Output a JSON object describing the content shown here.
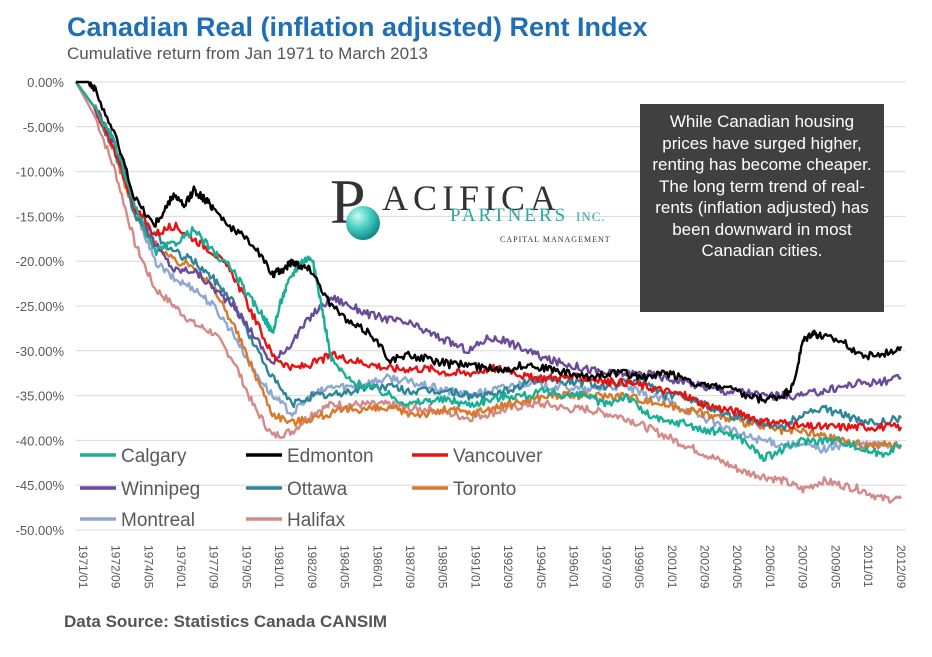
{
  "title": "Canadian Real (inflation adjusted) Rent Index",
  "subtitle": "Cumulative return from Jan 1971 to March 2013",
  "source": "Data Source: Statistics Canada CANSIM",
  "annotation": "While Canadian housing prices have surged higher, renting has become cheaper.  The long term trend of real-rents (inflation adjusted) has  been downward in most Canadian cities.",
  "logo": {
    "letter": "P",
    "name": "ACIFICA",
    "sub": "PARTNERS",
    "inc": "INC.",
    "tagline": "CAPITAL MANAGEMENT"
  },
  "colors": {
    "Calgary": "#1aaf94",
    "Edmonton": "#000000",
    "Vancouver": "#e81212",
    "Winnipeg": "#6a4a9a",
    "Ottawa": "#2e8599",
    "Toronto": "#d9782b",
    "Montreal": "#8fa8d2",
    "Halifax": "#d48a88",
    "grid": "#d9d9d9",
    "title": "#1f6fb5"
  },
  "chart_data": {
    "type": "line",
    "title": "Canadian Real (inflation adjusted) Rent Index",
    "xlabel": "",
    "ylabel": "",
    "x_unit": "year",
    "xlim": [
      1971.0,
      2013.25
    ],
    "ylim": [
      -50,
      0
    ],
    "y_ticks": [
      0,
      -5,
      -10,
      -15,
      -20,
      -25,
      -30,
      -35,
      -40,
      -45,
      -50
    ],
    "y_tick_labels": [
      "0.00%",
      "-5.00%",
      "-10.00%",
      "-15.00%",
      "-20.00%",
      "-25.00%",
      "-30.00%",
      "-35.00%",
      "-40.00%",
      "-45.00%",
      "-50.00%"
    ],
    "x_tick_labels": [
      "1971/01",
      "1972/09",
      "1974/05",
      "1976/01",
      "1977/09",
      "1979/05",
      "1981/01",
      "1982/09",
      "1984/05",
      "1986/01",
      "1987/09",
      "1989/05",
      "1991/01",
      "1992/09",
      "1994/05",
      "1996/01",
      "1997/09",
      "1999/05",
      "2001/01",
      "2002/09",
      "2004/05",
      "2006/01",
      "2007/09",
      "2009/05",
      "2011/01",
      "2012/09"
    ],
    "grid": true,
    "series": [
      {
        "name": "Calgary",
        "x": [
          1971,
          1972,
          1973,
          1974,
          1975,
          1976,
          1977,
          1978,
          1979,
          1979.8,
          1980.5,
          1981,
          1981.5,
          1982,
          1982.5,
          1983,
          1983.5,
          1984,
          1985,
          1986,
          1987,
          1988,
          1989,
          1990,
          1991,
          1992,
          1993,
          1994,
          1995,
          1996,
          1997,
          1998,
          1999,
          2000,
          2001,
          2002,
          2003,
          2004,
          2005,
          2006,
          2007,
          2008,
          2009,
          2010,
          2011,
          2012,
          2013
        ],
        "y": [
          0,
          -3,
          -7,
          -14,
          -19,
          -18,
          -16.5,
          -19,
          -21,
          -24,
          -26,
          -28,
          -24,
          -21.5,
          -20,
          -19.5,
          -25,
          -31,
          -33.5,
          -34,
          -35,
          -36,
          -35.5,
          -35.5,
          -36,
          -35.5,
          -35,
          -35,
          -34.5,
          -35,
          -35,
          -36,
          -35,
          -37,
          -38,
          -38,
          -39,
          -39,
          -40,
          -42,
          -41,
          -40,
          -40,
          -40,
          -41,
          -41.5,
          -40.5
        ]
      },
      {
        "name": "Edmonton",
        "x": [
          1971,
          1971.7,
          1972,
          1973,
          1974,
          1975,
          1975.6,
          1976,
          1976.5,
          1977,
          1977.5,
          1978,
          1979,
          1980,
          1981,
          1981.5,
          1982,
          1982.5,
          1983,
          1984,
          1985,
          1986,
          1987,
          1988,
          1989,
          1990,
          1991,
          1992,
          1993,
          1994,
          1995,
          1996,
          1997,
          1998,
          1999,
          2000,
          2001,
          2002,
          2003,
          2004,
          2005,
          2006,
          2007,
          2007.5,
          2008,
          2008.5,
          2009,
          2010,
          2011,
          2012,
          2013
        ],
        "y": [
          0,
          0,
          -1,
          -6,
          -13,
          -16,
          -14,
          -12.5,
          -14,
          -12,
          -13,
          -14,
          -16.5,
          -18,
          -21.5,
          -21,
          -20,
          -20.5,
          -21,
          -25,
          -27,
          -28,
          -31,
          -30.5,
          -31,
          -31.5,
          -31.5,
          -32,
          -32,
          -31.5,
          -32,
          -32.5,
          -33,
          -32.5,
          -32.5,
          -33,
          -32.5,
          -33,
          -34,
          -34,
          -35,
          -35.5,
          -35,
          -34,
          -29,
          -28,
          -28.5,
          -29,
          -30.5,
          -30.5,
          -29.5
        ]
      },
      {
        "name": "Vancouver",
        "x": [
          1971,
          1972,
          1973,
          1974,
          1975,
          1976,
          1977,
          1978,
          1979,
          1980,
          1981,
          1982,
          1983,
          1984,
          1985,
          1986,
          1987,
          1988,
          1989,
          1990,
          1991,
          1992,
          1993,
          1994,
          1995,
          1996,
          1997,
          1998,
          1999,
          2000,
          2001,
          2002,
          2003,
          2004,
          2005,
          2006,
          2007,
          2008,
          2009,
          2010,
          2011,
          2012,
          2013
        ],
        "y": [
          0,
          -3,
          -8,
          -14,
          -17,
          -16,
          -17.5,
          -19,
          -21.5,
          -26,
          -30.5,
          -32,
          -31.5,
          -30.5,
          -31,
          -31.5,
          -32,
          -32,
          -32,
          -32.5,
          -32.5,
          -32,
          -32,
          -33,
          -33,
          -33,
          -33,
          -33.5,
          -33.5,
          -34,
          -34.5,
          -35,
          -36,
          -36.5,
          -37,
          -38,
          -38,
          -38.5,
          -38.5,
          -38.5,
          -38.5,
          -38.5,
          -38.5
        ]
      },
      {
        "name": "Winnipeg",
        "x": [
          1971,
          1972,
          1973,
          1974,
          1975,
          1976,
          1977,
          1978,
          1979,
          1980,
          1981,
          1982,
          1983,
          1984,
          1985,
          1986,
          1987,
          1988,
          1989,
          1990,
          1991,
          1992,
          1993,
          1994,
          1995,
          1996,
          1997,
          1998,
          1999,
          2000,
          2001,
          2002,
          2003,
          2004,
          2005,
          2006,
          2007,
          2008,
          2009,
          2010,
          2011,
          2012,
          2013
        ],
        "y": [
          0,
          -3,
          -7,
          -14,
          -18,
          -21,
          -21,
          -23,
          -25,
          -28,
          -31.5,
          -29,
          -26,
          -24,
          -25,
          -26,
          -26.5,
          -27,
          -28,
          -29,
          -30,
          -28.5,
          -29,
          -30,
          -31,
          -31.5,
          -32,
          -32.5,
          -32.5,
          -32.5,
          -33,
          -33.5,
          -34,
          -34.5,
          -34.5,
          -35,
          -35,
          -35,
          -34.5,
          -34,
          -33.5,
          -33.5,
          -33
        ]
      },
      {
        "name": "Ottawa",
        "x": [
          1971,
          1972,
          1973,
          1974,
          1975,
          1976,
          1977,
          1978,
          1979,
          1980,
          1981,
          1982,
          1983,
          1984,
          1985,
          1986,
          1987,
          1988,
          1989,
          1990,
          1991,
          1992,
          1993,
          1994,
          1995,
          1996,
          1997,
          1998,
          1999,
          2000,
          2001,
          2002,
          2003,
          2004,
          2005,
          2006,
          2007,
          2008,
          2009,
          2010,
          2011,
          2012,
          2013
        ],
        "y": [
          0,
          -3,
          -8,
          -15,
          -17,
          -19,
          -20,
          -22,
          -24.5,
          -29,
          -33,
          -36,
          -35,
          -35,
          -34.5,
          -34,
          -34,
          -34.5,
          -34.5,
          -34.5,
          -35,
          -35,
          -34.5,
          -33.5,
          -33,
          -33.5,
          -33.5,
          -34,
          -33.5,
          -33.5,
          -35,
          -35,
          -36,
          -37,
          -37.5,
          -38,
          -38.5,
          -37,
          -36.5,
          -37,
          -38,
          -38,
          -37.5
        ]
      },
      {
        "name": "Toronto",
        "x": [
          1971,
          1972,
          1973,
          1974,
          1975,
          1976,
          1977,
          1978,
          1979,
          1980,
          1981,
          1982,
          1983,
          1984,
          1985,
          1986,
          1987,
          1988,
          1989,
          1990,
          1991,
          1992,
          1993,
          1994,
          1995,
          1996,
          1997,
          1998,
          1999,
          2000,
          2001,
          2002,
          2003,
          2004,
          2005,
          2006,
          2007,
          2008,
          2009,
          2010,
          2011,
          2012,
          2013
        ],
        "y": [
          0,
          -3,
          -8,
          -15,
          -18,
          -20,
          -20.5,
          -23,
          -27,
          -32,
          -37,
          -38,
          -37.5,
          -37,
          -36.5,
          -36.5,
          -36.5,
          -37,
          -37,
          -36.5,
          -37,
          -36.5,
          -36,
          -35.5,
          -35,
          -35,
          -35,
          -35,
          -35,
          -35.5,
          -36,
          -36.5,
          -37,
          -37.5,
          -38,
          -38.5,
          -39,
          -39,
          -39.5,
          -40,
          -40.5,
          -40.5,
          -40.5
        ]
      },
      {
        "name": "Montreal",
        "x": [
          1971,
          1972,
          1973,
          1974,
          1975,
          1976,
          1977,
          1978,
          1979,
          1980,
          1981,
          1982,
          1983,
          1984,
          1985,
          1986,
          1987,
          1988,
          1989,
          1990,
          1991,
          1992,
          1993,
          1994,
          1995,
          1996,
          1997,
          1998,
          1999,
          2000,
          2001,
          2002,
          2003,
          2004,
          2005,
          2006,
          2007,
          2008,
          2009,
          2010,
          2011,
          2012,
          2013
        ],
        "y": [
          0,
          -3,
          -8,
          -14,
          -20,
          -22,
          -23,
          -25,
          -28,
          -32,
          -35,
          -37,
          -35,
          -34,
          -34,
          -33.5,
          -33,
          -33.5,
          -34,
          -34.5,
          -35,
          -34.5,
          -34,
          -33.5,
          -34,
          -34,
          -34.5,
          -34,
          -34,
          -35,
          -35.5,
          -36.5,
          -37.5,
          -38.5,
          -39.5,
          -40,
          -40.5,
          -40.5,
          -41,
          -40.5,
          -40.5,
          -40.5,
          -40.5
        ]
      },
      {
        "name": "Halifax",
        "x": [
          1971,
          1972,
          1973,
          1974,
          1975,
          1976,
          1977,
          1978,
          1979,
          1980,
          1981,
          1982,
          1983,
          1984,
          1985,
          1986,
          1987,
          1988,
          1989,
          1990,
          1991,
          1992,
          1993,
          1994,
          1995,
          1996,
          1997,
          1998,
          1999,
          2000,
          2001,
          2002,
          2003,
          2004,
          2005,
          2006,
          2007,
          2008,
          2009,
          2010,
          2011,
          2012,
          2013
        ],
        "y": [
          0,
          -4,
          -10,
          -18,
          -23,
          -25,
          -27,
          -28,
          -31,
          -36,
          -39.5,
          -39,
          -37,
          -36,
          -36,
          -36,
          -36,
          -36.5,
          -36.5,
          -37,
          -37.5,
          -37,
          -36.5,
          -36,
          -36,
          -36.5,
          -36.5,
          -37,
          -37.5,
          -38.5,
          -39.5,
          -40.5,
          -41.5,
          -42.5,
          -43.5,
          -44,
          -44.5,
          -45.5,
          -44.5,
          -45,
          -45.5,
          -46.5,
          -46.5
        ]
      }
    ]
  }
}
